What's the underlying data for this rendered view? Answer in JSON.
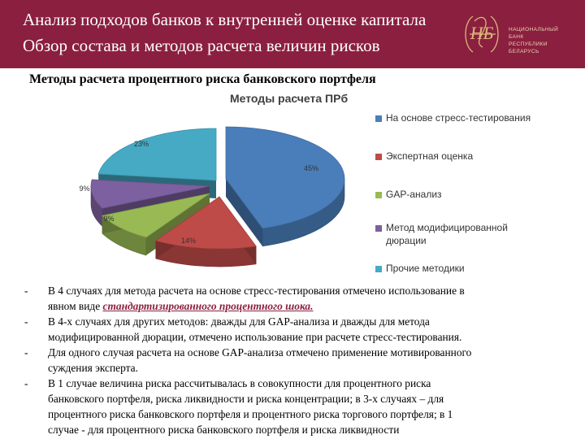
{
  "header": {
    "title_line1": "Анализ подходов банков к внутренней оценке капитала",
    "title_line2": "Обзор состава и методов расчета величин рисков",
    "logo_text": [
      "НАЦИОНАЛЬНЫЙ",
      "БАНК",
      "РЕСПУБЛИКИ",
      "БЕЛАРУСЬ"
    ],
    "logo_monogram": "НБ"
  },
  "section_title": "Методы расчета процентного риска банковского портфеля",
  "chart_data": {
    "type": "pie",
    "style": "3d-exploded",
    "title": "Методы расчета ПРб",
    "legend_position": "right",
    "categories": [
      "На основе стресс-тестирования",
      "Экспертная оценка",
      "GAP-анализ",
      "Метод модифицированной дюрации",
      "Прочие методики"
    ],
    "values": [
      45,
      14,
      9,
      9,
      23
    ],
    "data_labels": [
      "45%",
      "14%",
      "9%",
      "9%",
      "23%"
    ],
    "colors": [
      "#4a7ebb",
      "#be4b48",
      "#98b954",
      "#7d60a0",
      "#46aac5"
    ],
    "legend": [
      {
        "label_lines": [
          "На основе стресс-тестирования"
        ]
      },
      {
        "label_lines": [
          "Экспертная оценка"
        ]
      },
      {
        "label_lines": [
          "GAP-анализ"
        ]
      },
      {
        "label_lines": [
          "Метод модифицированной",
          "дюрации"
        ]
      },
      {
        "label_lines": [
          "Прочие методики"
        ]
      }
    ]
  },
  "bullets": [
    {
      "dash": "-",
      "line1": "В 4 случаях для метода расчета на основе стресс-тестирования отмечено использование в",
      "line2_prefix": "явном виде ",
      "highlight": "стандартизированного процентного шока."
    },
    {
      "dash": "-",
      "lines": [
        "В 4-х случаях для других методов: дважды для GAP-анализа и дважды для метода",
        "модифицированной дюрации, отмечено использование при расчете стресс-тестирования."
      ]
    },
    {
      "dash": "-",
      "lines": [
        "Для одного случая расчета на основе GAP-анализа отмечено применение мотивированного",
        "суждения эксперта."
      ]
    },
    {
      "dash": "-",
      "lines": [
        "В 1 случае величина риска рассчитывалась в совокупности для процентного риска",
        "банковского портфеля, риска ликвидности и риска концентрации; в 3-х случаях – для",
        "процентного риска банковского портфеля и процентного риска торгового портфеля; в 1",
        "случае - для процентного риска банковского портфеля и риска ликвидности"
      ]
    }
  ]
}
